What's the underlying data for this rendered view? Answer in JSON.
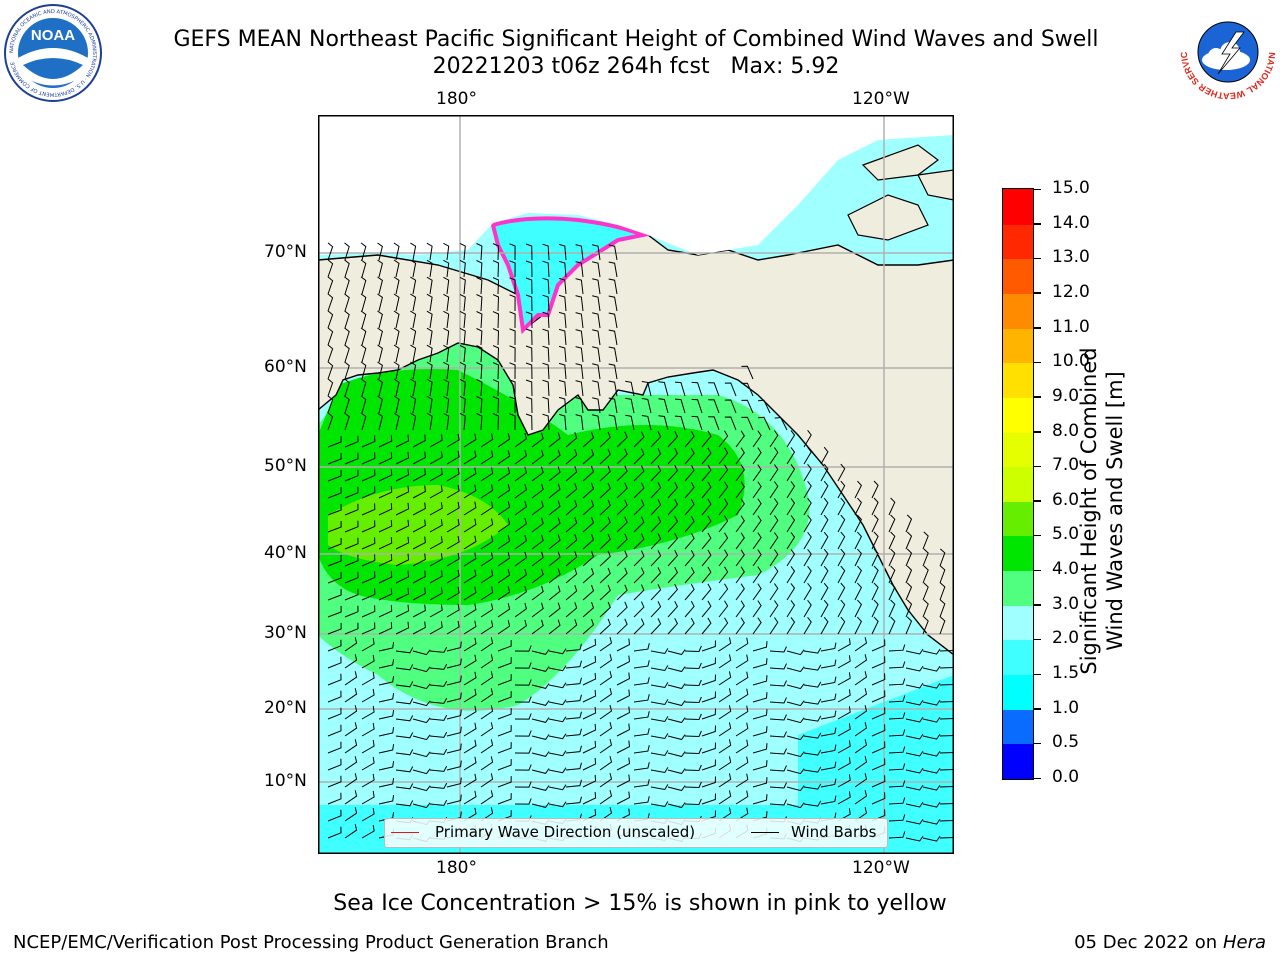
{
  "header": {
    "title_line1": "GEFS MEAN Northeast Pacific Significant Height of Combined Wind Waves and Swell",
    "title_line2": "20221203 t06z 264h fcst   Max: 5.92"
  },
  "logos": {
    "noaa_text": "NOAA",
    "noaa_ring_text": "NATIONAL OCEANIC AND ATMOSPHERIC ADMINISTRATION · U.S. DEPARTMENT OF COMMERCE",
    "nws_ring_text": "NATIONAL WEATHER SERVICE"
  },
  "map": {
    "top_lon_labels": [
      "180°",
      "120°W"
    ],
    "bottom_lon_labels": [
      "180°",
      "120°W"
    ],
    "lat_labels": [
      "70°N",
      "60°N",
      "50°N",
      "40°N",
      "30°N",
      "20°N",
      "10°N"
    ],
    "colors": {
      "land": "#efedde",
      "grid": "#b0b0b0",
      "wave_arrow": "#ee1111",
      "wind_barb": "#000000"
    }
  },
  "legend": {
    "wave_label": "Primary Wave Direction (unscaled)",
    "barb_label": "Wind Barbs"
  },
  "colorbar": {
    "label_line1": "Significant Height of Combined",
    "label_line2": "Wind Waves and Swell [m]",
    "ticks": [
      "0.0",
      "0.5",
      "1.0",
      "1.5",
      "2.0",
      "3.0",
      "4.0",
      "5.0",
      "6.0",
      "7.0",
      "8.0",
      "9.0",
      "10.0",
      "11.0",
      "12.0",
      "13.0",
      "14.0",
      "15.0"
    ],
    "colors": [
      "#0000ff",
      "#0a6cff",
      "#00ffff",
      "#40ffff",
      "#a0ffff",
      "#50ff80",
      "#00e600",
      "#66ee00",
      "#ccff00",
      "#e6ff00",
      "#ffff00",
      "#ffe000",
      "#ffb400",
      "#ff8c00",
      "#ff5a00",
      "#ff2800",
      "#ff0000"
    ]
  },
  "footer": {
    "note": "Sea Ice Concentration > 15% is shown in pink to yellow",
    "org": "NCEP/EMC/Verification Post Processing Product Generation Branch",
    "date": "05 Dec 2022 on",
    "host": "Hera"
  }
}
